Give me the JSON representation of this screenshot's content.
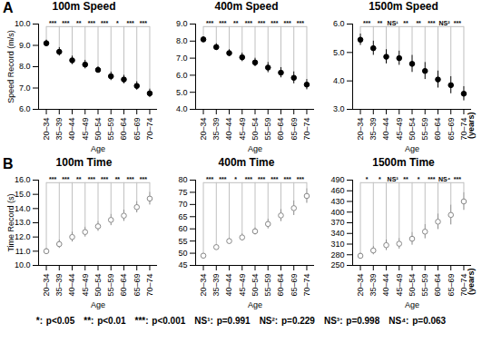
{
  "chart_data": [
    {
      "type": "scatter",
      "title": "100m Speed",
      "y_label": "Speed Record (m/s)",
      "x_label": "Age",
      "categories": [
        "20–34",
        "35–39",
        "40–44",
        "45–49",
        "50–54",
        "55–59",
        "60–64",
        "65–69",
        "70–74"
      ],
      "values": [
        9.1,
        8.7,
        8.3,
        8.1,
        7.85,
        7.55,
        7.4,
        7.1,
        6.75
      ],
      "errors": [
        0.15,
        0.2,
        0.2,
        0.2,
        0.15,
        0.2,
        0.2,
        0.2,
        0.2
      ],
      "significance": [
        "***",
        "***",
        "**",
        "***",
        "***",
        "*",
        "***",
        "***"
      ],
      "ylim": [
        6,
        10
      ],
      "yticks": [
        6,
        7,
        8,
        9,
        10
      ],
      "color": "#000000",
      "marker": "circle"
    },
    {
      "type": "scatter",
      "title": "400m Speed",
      "x_label": "Age",
      "categories": [
        "20–34",
        "35–39",
        "40–44",
        "45–49",
        "50–54",
        "55–59",
        "60–64",
        "65–69",
        "70–74"
      ],
      "values": [
        8.1,
        7.65,
        7.3,
        7.05,
        6.75,
        6.45,
        6.15,
        5.85,
        5.45
      ],
      "errors": [
        0.15,
        0.2,
        0.2,
        0.25,
        0.25,
        0.3,
        0.3,
        0.35,
        0.3
      ],
      "significance": [
        "***",
        "***",
        "**",
        "***",
        "***",
        "***",
        "***",
        "***"
      ],
      "ylim": [
        4,
        9
      ],
      "yticks": [
        4,
        5,
        6,
        7,
        8,
        9
      ],
      "color": "#000000",
      "marker": "circle"
    },
    {
      "type": "scatter",
      "title": "1500m Speed",
      "x_label": "Age",
      "x_unit": "(years)",
      "categories": [
        "20–34",
        "35–39",
        "40–44",
        "45–49",
        "50–54",
        "55–59",
        "60–64",
        "65–69",
        "70–74"
      ],
      "values": [
        5.45,
        5.15,
        4.85,
        4.8,
        4.6,
        4.35,
        4.05,
        3.85,
        3.55
      ],
      "errors": [
        0.2,
        0.25,
        0.25,
        0.25,
        0.3,
        0.3,
        0.3,
        0.3,
        0.25
      ],
      "significance": [
        "***",
        "**",
        "NS¹",
        "**",
        "**",
        "***",
        "NS²",
        "***"
      ],
      "ylim": [
        3,
        6
      ],
      "yticks": [
        3,
        4,
        5,
        6
      ],
      "color": "#000000",
      "marker": "circle"
    },
    {
      "type": "scatter",
      "title": "100m Time",
      "y_label": "Time Record (s)",
      "x_label": "Age",
      "categories": [
        "20–34",
        "35–39",
        "40–44",
        "45–49",
        "50–54",
        "55–59",
        "60–64",
        "65–69",
        "70–74"
      ],
      "values": [
        11.0,
        11.5,
        12.0,
        12.35,
        12.75,
        13.2,
        13.5,
        14.1,
        14.7
      ],
      "errors": [
        0.2,
        0.3,
        0.35,
        0.35,
        0.35,
        0.4,
        0.4,
        0.4,
        0.45
      ],
      "significance": [
        "***",
        "***",
        "**",
        "***",
        "***",
        "**",
        "***",
        "***"
      ],
      "ylim": [
        10,
        16
      ],
      "yticks": [
        10,
        11,
        12,
        13,
        14,
        15,
        16
      ],
      "color": "#888888",
      "marker": "open_circle"
    },
    {
      "type": "scatter",
      "title": "400m Time",
      "x_label": "Age",
      "categories": [
        "20–34",
        "35–39",
        "40–44",
        "45–49",
        "50–54",
        "55–59",
        "60–64",
        "65–69",
        "70–74"
      ],
      "values": [
        49,
        52.5,
        55,
        56.5,
        59,
        62,
        65.5,
        68.5,
        73.5
      ],
      "errors": [
        0.8,
        1,
        1.2,
        1.5,
        1.5,
        2,
        2.5,
        3,
        3
      ],
      "significance": [
        "***",
        "***",
        "*",
        "***",
        "***",
        "***",
        "***",
        "***"
      ],
      "ylim": [
        45,
        80
      ],
      "yticks": [
        45,
        50,
        55,
        60,
        65,
        70,
        75,
        80
      ],
      "color": "#888888",
      "marker": "open_circle"
    },
    {
      "type": "scatter",
      "title": "1500m Time",
      "x_label": "Age",
      "x_unit": "(years)",
      "categories": [
        "20–34",
        "35–39",
        "40–44",
        "45–49",
        "50–54",
        "55–59",
        "60–64",
        "65–69",
        "70–74"
      ],
      "values": [
        277,
        292,
        307,
        311,
        325,
        345,
        373,
        392,
        430
      ],
      "errors": [
        8,
        12,
        15,
        15,
        18,
        20,
        22,
        28,
        25
      ],
      "significance": [
        "*",
        "*",
        "NS³",
        "**",
        "*",
        "***",
        "NS⁴",
        "***"
      ],
      "ylim": [
        250,
        490
      ],
      "yticks": [
        250,
        280,
        310,
        340,
        370,
        400,
        430,
        460,
        490
      ],
      "color": "#888888",
      "marker": "open_circle"
    }
  ],
  "panel_labels": [
    "A",
    "B"
  ],
  "footnote": [
    "*: p<0.05",
    "**: p<0.01",
    "***: p<0.001",
    "NS¹: p=0.991",
    "NS²: p=0.229",
    "NS³: p=0.998",
    "NS⁴: p=0.063"
  ]
}
